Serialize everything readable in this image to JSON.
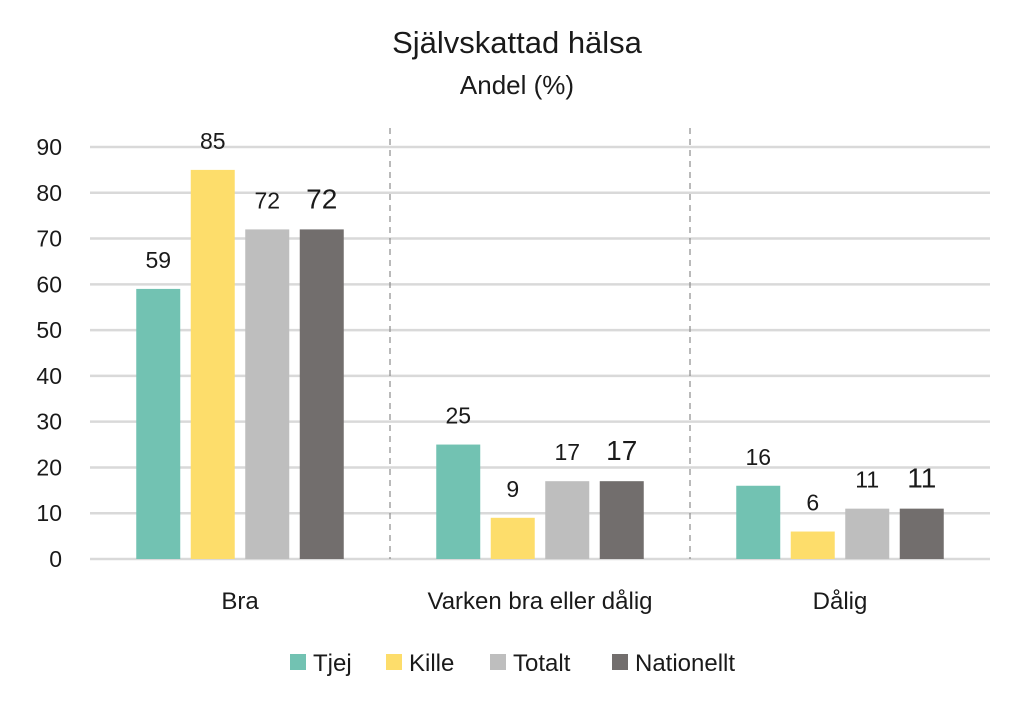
{
  "chart_data": {
    "type": "bar",
    "title": "Självskattad hälsa",
    "subtitle": "Andel (%)",
    "categories": [
      "Bra",
      "Varken bra eller dålig",
      "Dålig"
    ],
    "series": [
      {
        "name": "Tjej",
        "color": "#72C2B2",
        "values": [
          59,
          25,
          16
        ],
        "labels": [
          "59",
          "25",
          "16"
        ]
      },
      {
        "name": "Kille",
        "color": "#FDDD6B",
        "values": [
          85,
          9,
          6
        ],
        "labels": [
          "85",
          "9",
          "6"
        ]
      },
      {
        "name": "Totalt",
        "color": "#BEBEBE",
        "values": [
          72,
          17,
          11
        ],
        "labels": [
          "72",
          "17",
          "11"
        ]
      },
      {
        "name": "Nationellt",
        "color": "#726E6D",
        "values": [
          72,
          17,
          11
        ],
        "labels": [
          "72",
          "17",
          "11"
        ]
      }
    ],
    "ylim": [
      0,
      90
    ],
    "yticks": [
      "0",
      "10",
      "20",
      "30",
      "40",
      "50",
      "60",
      "70",
      "80",
      "90"
    ],
    "grid": true,
    "category_separators": "dashed",
    "legend_position": "bottom"
  }
}
